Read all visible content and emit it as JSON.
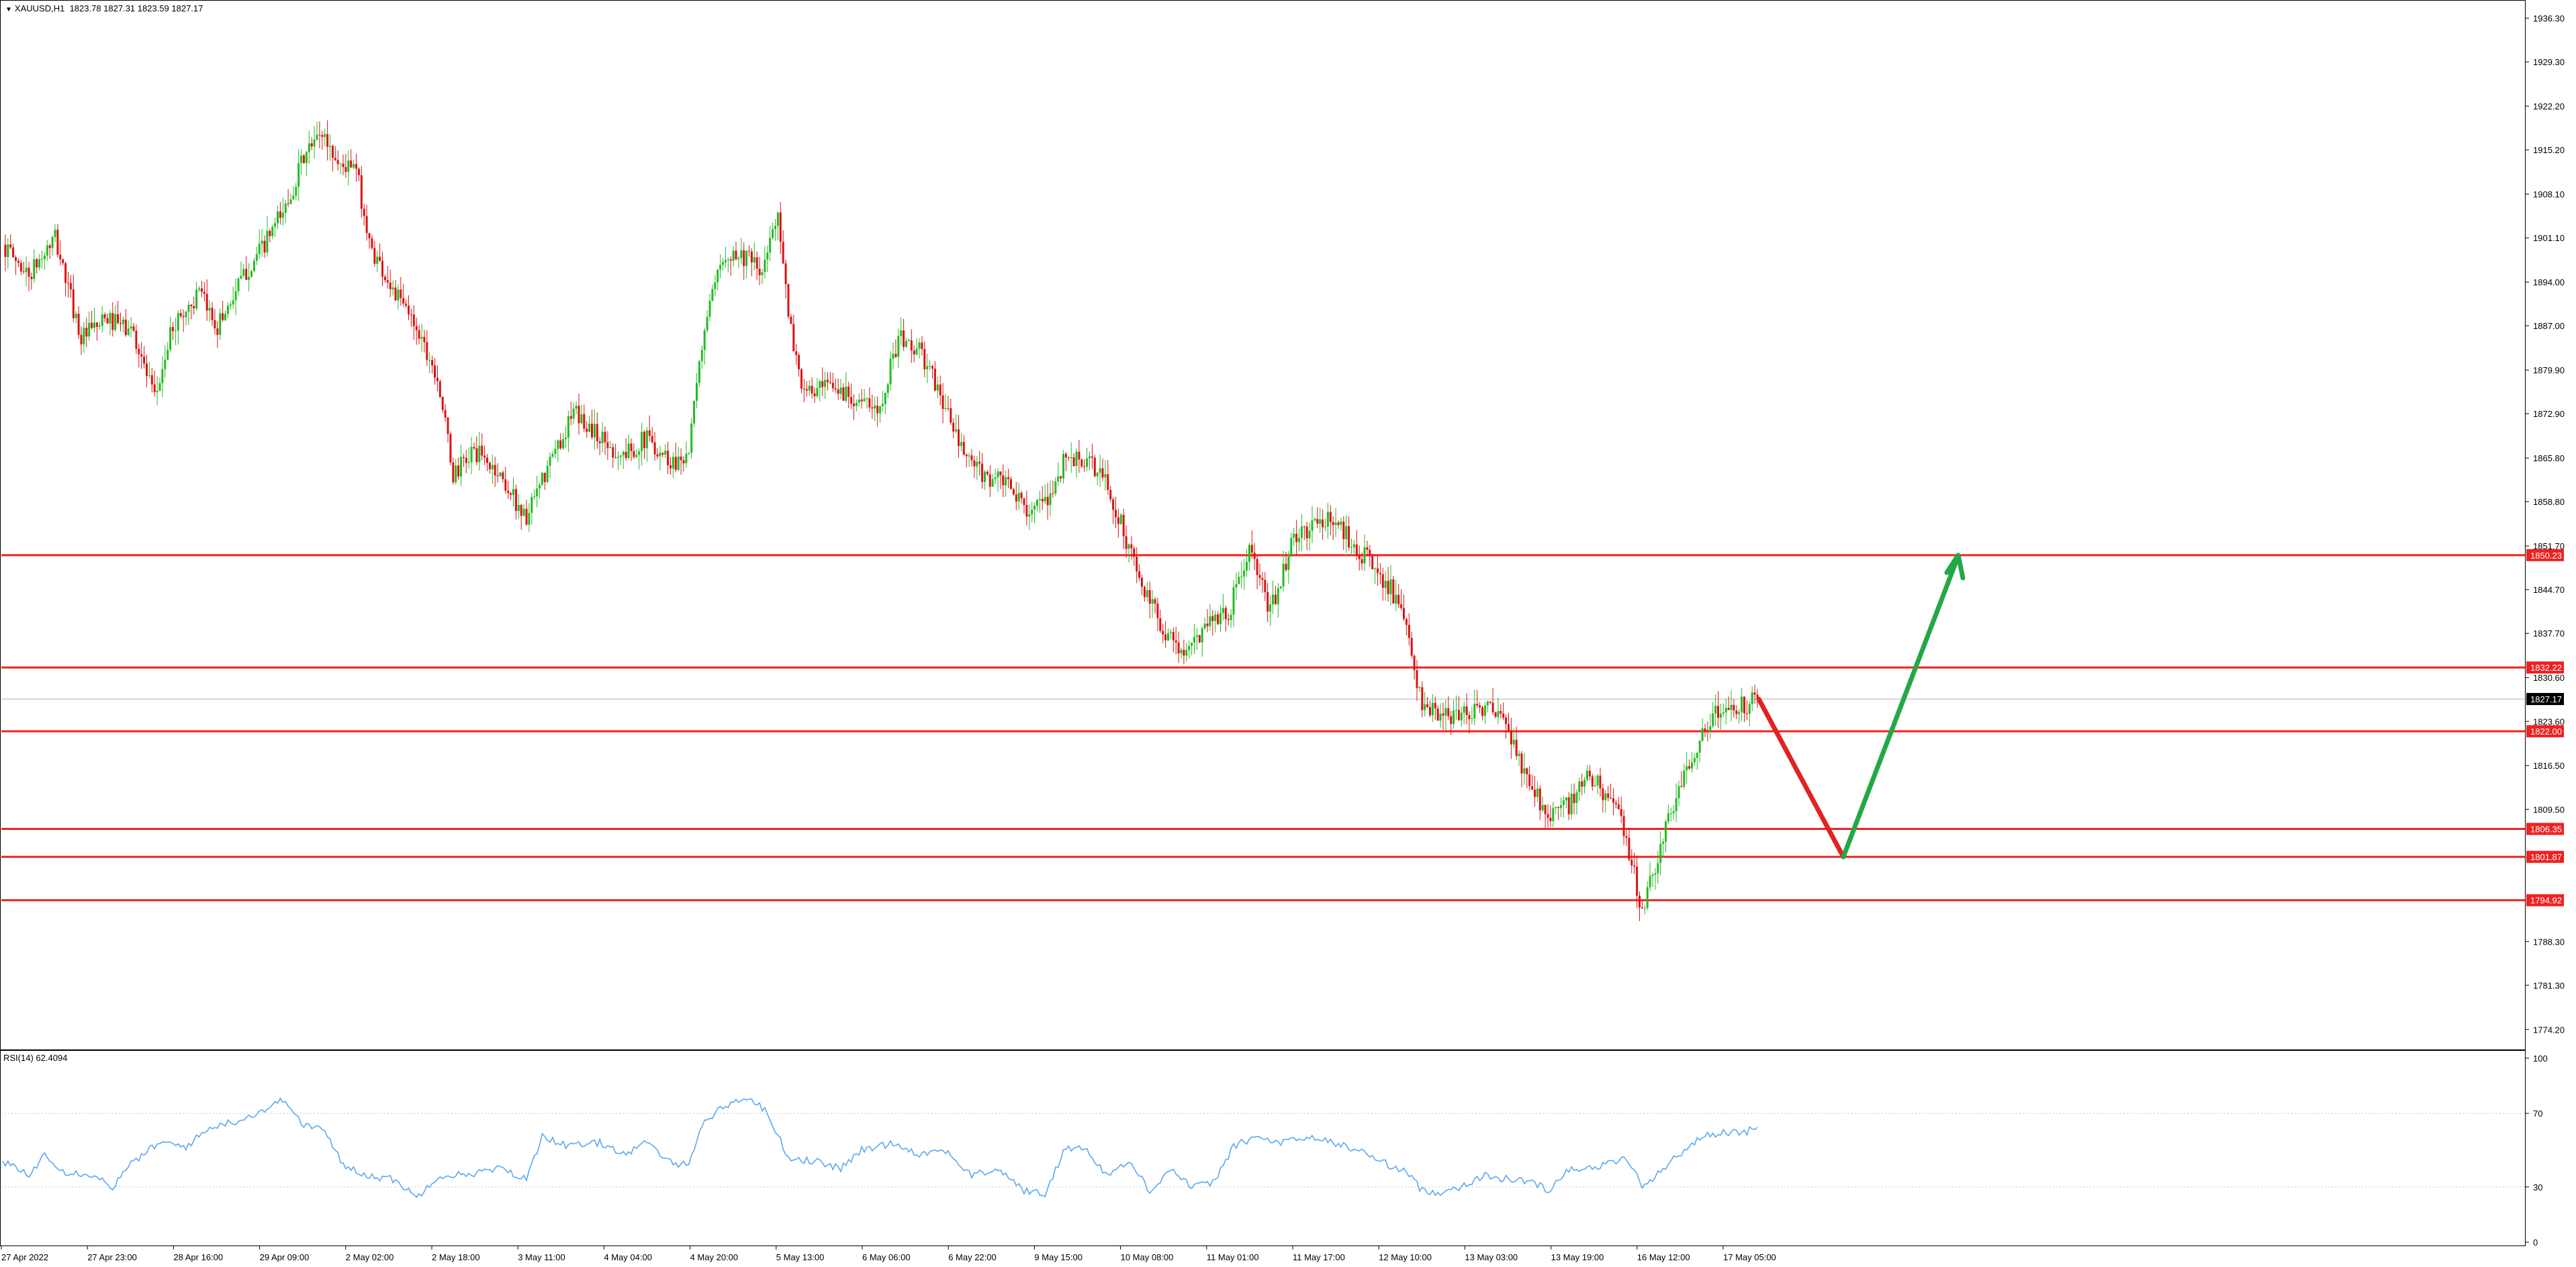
{
  "header": {
    "symbol": "XAUUSD,H1",
    "ohlc": "1823.78 1827.31 1823.59 1827.17"
  },
  "rsi_panel": {
    "title": "RSI(14) 62.4094",
    "levels": [
      100,
      70,
      30,
      0
    ]
  },
  "colors": {
    "bull": "#22bb22",
    "bear": "#dd1111",
    "level_line": "#ee2222",
    "rsi_line": "#5aa8ee",
    "arrow_up": "#22a845",
    "arrow_down": "#e22222",
    "current_price_bg": "#000000"
  },
  "chart_data": {
    "type": "candlestick",
    "x_tick_labels": [
      "27 Apr 2022",
      "27 Apr 23:00",
      "28 Apr 16:00",
      "29 Apr 09:00",
      "2 May 02:00",
      "2 May 18:00",
      "3 May 11:00",
      "4 May 04:00",
      "4 May 20:00",
      "5 May 13:00",
      "6 May 06:00",
      "6 May 22:00",
      "9 May 15:00",
      "10 May 08:00",
      "11 May 01:00",
      "11 May 17:00",
      "12 May 10:00",
      "13 May 03:00",
      "13 May 19:00",
      "16 May 12:00",
      "17 May 05:00"
    ],
    "y_tick_labels": [
      "1936.30",
      "1929.30",
      "1922.20",
      "1915.20",
      "1908.10",
      "1901.10",
      "1894.00",
      "1887.00",
      "1879.90",
      "1872.90",
      "1865.80",
      "1858.80",
      "1851.70",
      "1844.70",
      "1837.70",
      "1830.60",
      "1823.60",
      "1816.50",
      "1809.50",
      "1788.30",
      "1781.30",
      "1774.20"
    ],
    "ylim": [
      1771.0,
      1939.0
    ],
    "current_price": "1827.17",
    "horizontal_levels": [
      "1850.23",
      "1832.22",
      "1822.00",
      "1806.35",
      "1801.87",
      "1794.92"
    ],
    "close_path": [
      [
        0,
        1900
      ],
      [
        10,
        1895
      ],
      [
        20,
        1901
      ],
      [
        30,
        1885
      ],
      [
        40,
        1888
      ],
      [
        50,
        1886
      ],
      [
        58,
        1875
      ],
      [
        65,
        1887
      ],
      [
        75,
        1892
      ],
      [
        82,
        1887
      ],
      [
        92,
        1895
      ],
      [
        100,
        1900
      ],
      [
        108,
        1906
      ],
      [
        115,
        1914
      ],
      [
        122,
        1918
      ],
      [
        128,
        1913
      ],
      [
        135,
        1912
      ],
      [
        140,
        1900
      ],
      [
        150,
        1892
      ],
      [
        158,
        1887
      ],
      [
        166,
        1879
      ],
      [
        172,
        1863
      ],
      [
        180,
        1867
      ],
      [
        190,
        1863
      ],
      [
        200,
        1856
      ],
      [
        210,
        1866
      ],
      [
        218,
        1873
      ],
      [
        226,
        1870
      ],
      [
        236,
        1866
      ],
      [
        246,
        1869
      ],
      [
        256,
        1865
      ],
      [
        262,
        1867
      ],
      [
        268,
        1887
      ],
      [
        276,
        1899
      ],
      [
        284,
        1898
      ],
      [
        290,
        1895
      ],
      [
        296,
        1906
      ],
      [
        300,
        1888
      ],
      [
        306,
        1876
      ],
      [
        316,
        1877
      ],
      [
        324,
        1876
      ],
      [
        334,
        1873
      ],
      [
        342,
        1885
      ],
      [
        350,
        1883
      ],
      [
        358,
        1876
      ],
      [
        366,
        1867
      ],
      [
        374,
        1863
      ],
      [
        382,
        1862
      ],
      [
        390,
        1858
      ],
      [
        398,
        1858
      ],
      [
        406,
        1866
      ],
      [
        414,
        1865
      ],
      [
        420,
        1863
      ],
      [
        428,
        1854
      ],
      [
        436,
        1844
      ],
      [
        444,
        1838
      ],
      [
        452,
        1834
      ],
      [
        460,
        1840
      ],
      [
        468,
        1841
      ],
      [
        476,
        1851
      ],
      [
        484,
        1841
      ],
      [
        492,
        1852
      ],
      [
        500,
        1855
      ],
      [
        508,
        1856
      ],
      [
        514,
        1853
      ],
      [
        522,
        1849
      ],
      [
        530,
        1845
      ],
      [
        536,
        1838
      ],
      [
        542,
        1826
      ],
      [
        550,
        1824
      ],
      [
        558,
        1825
      ],
      [
        566,
        1826
      ],
      [
        574,
        1823
      ],
      [
        582,
        1814
      ],
      [
        590,
        1809
      ],
      [
        598,
        1810
      ],
      [
        606,
        1815
      ],
      [
        614,
        1811
      ],
      [
        620,
        1805
      ],
      [
        626,
        1793
      ],
      [
        634,
        1805
      ],
      [
        642,
        1815
      ],
      [
        650,
        1823
      ],
      [
        658,
        1826
      ],
      [
        664,
        1826
      ],
      [
        670,
        1827.17
      ]
    ],
    "rsi_path": [
      [
        0,
        44
      ],
      [
        10,
        36
      ],
      [
        16,
        48
      ],
      [
        24,
        38
      ],
      [
        34,
        37
      ],
      [
        42,
        30
      ],
      [
        50,
        44
      ],
      [
        60,
        54
      ],
      [
        70,
        52
      ],
      [
        80,
        63
      ],
      [
        90,
        66
      ],
      [
        100,
        72
      ],
      [
        108,
        78
      ],
      [
        114,
        64
      ],
      [
        122,
        62
      ],
      [
        130,
        42
      ],
      [
        140,
        36
      ],
      [
        150,
        34
      ],
      [
        158,
        24
      ],
      [
        166,
        36
      ],
      [
        178,
        37
      ],
      [
        190,
        40
      ],
      [
        200,
        34
      ],
      [
        206,
        58
      ],
      [
        216,
        52
      ],
      [
        228,
        54
      ],
      [
        238,
        48
      ],
      [
        246,
        54
      ],
      [
        256,
        42
      ],
      [
        262,
        44
      ],
      [
        268,
        66
      ],
      [
        278,
        76
      ],
      [
        286,
        78
      ],
      [
        292,
        70
      ],
      [
        300,
        46
      ],
      [
        310,
        44
      ],
      [
        320,
        40
      ],
      [
        328,
        50
      ],
      [
        340,
        54
      ],
      [
        350,
        48
      ],
      [
        360,
        50
      ],
      [
        370,
        36
      ],
      [
        380,
        40
      ],
      [
        390,
        28
      ],
      [
        398,
        26
      ],
      [
        406,
        52
      ],
      [
        414,
        50
      ],
      [
        422,
        36
      ],
      [
        430,
        44
      ],
      [
        438,
        28
      ],
      [
        446,
        40
      ],
      [
        454,
        30
      ],
      [
        462,
        32
      ],
      [
        470,
        52
      ],
      [
        478,
        57
      ],
      [
        488,
        54
      ],
      [
        500,
        57
      ],
      [
        508,
        54
      ],
      [
        518,
        50
      ],
      [
        526,
        44
      ],
      [
        536,
        38
      ],
      [
        542,
        28
      ],
      [
        548,
        27
      ],
      [
        556,
        30
      ],
      [
        566,
        36
      ],
      [
        576,
        34
      ],
      [
        584,
        33
      ],
      [
        590,
        28
      ],
      [
        598,
        40
      ],
      [
        606,
        40
      ],
      [
        614,
        43
      ],
      [
        620,
        46
      ],
      [
        626,
        30
      ],
      [
        634,
        40
      ],
      [
        642,
        50
      ],
      [
        650,
        58
      ],
      [
        658,
        60
      ],
      [
        664,
        59
      ],
      [
        670,
        62.4
      ]
    ]
  }
}
